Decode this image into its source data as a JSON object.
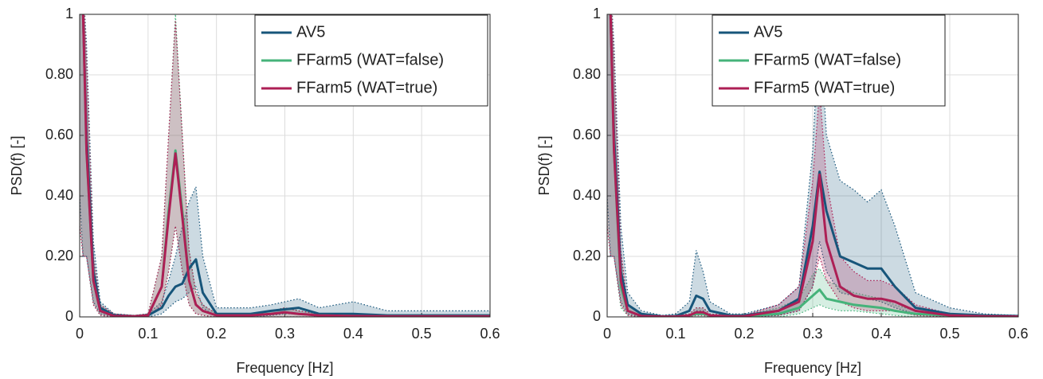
{
  "chart_data": [
    {
      "type": "line",
      "x_label": "Frequency [Hz]",
      "y_label": "PSD(f) [-]",
      "grid": true,
      "legend": "upper right",
      "xlim": [
        0,
        0.6
      ],
      "ylim": [
        0,
        1
      ],
      "xticks": [
        0,
        0.1,
        0.2,
        0.3,
        0.4,
        0.5,
        0.6
      ],
      "yticks": [
        0,
        {
          "value": 0.2,
          "label": "0.20"
        },
        {
          "value": 0.4,
          "label": "0.40"
        },
        {
          "value": 0.6,
          "label": "0.60"
        },
        {
          "value": 0.8,
          "label": "0.80"
        },
        1
      ],
      "x": [
        0,
        0.005,
        0.01,
        0.02,
        0.03,
        0.05,
        0.08,
        0.1,
        0.12,
        0.13,
        0.14,
        0.15,
        0.16,
        0.17,
        0.18,
        0.2,
        0.25,
        0.28,
        0.3,
        0.32,
        0.35,
        0.4,
        0.45,
        0.5,
        0.55,
        0.6
      ],
      "series": [
        {
          "name": "AV5",
          "color": "#17557a",
          "values": [
            1.1,
            1.0,
            0.6,
            0.15,
            0.03,
            0.005,
            0.002,
            0.005,
            0.03,
            0.07,
            0.1,
            0.11,
            0.16,
            0.19,
            0.08,
            0.01,
            0.01,
            0.02,
            0.025,
            0.03,
            0.01,
            0.01,
            0.005,
            0.005,
            0.005,
            0.005
          ],
          "lower": [
            0.4,
            0.2,
            0.2,
            0.05,
            0.01,
            0,
            0,
            0,
            0.01,
            0.03,
            0.05,
            0.06,
            0.08,
            0.1,
            0.03,
            0,
            0,
            0.005,
            0.01,
            0.01,
            0,
            0,
            0,
            0,
            0,
            0
          ],
          "upper": [
            1.1,
            1.1,
            0.9,
            0.25,
            0.05,
            0.01,
            0.005,
            0.01,
            0.05,
            0.12,
            0.2,
            0.3,
            0.38,
            0.43,
            0.2,
            0.03,
            0.03,
            0.04,
            0.05,
            0.06,
            0.03,
            0.05,
            0.02,
            0.02,
            0.02,
            0.02
          ]
        },
        {
          "name": "FFarm5 (WAT=false)",
          "color": "#45b37a",
          "values": [
            1.1,
            1.0,
            0.55,
            0.12,
            0.02,
            0.003,
            0.002,
            0.005,
            0.1,
            0.35,
            0.55,
            0.35,
            0.12,
            0.04,
            0.02,
            0.005,
            0.005,
            0.01,
            0.015,
            0.01,
            0.005,
            0.003,
            0.002,
            0.002,
            0.002,
            0.002
          ],
          "lower": [
            0.3,
            0.2,
            0.2,
            0.04,
            0.005,
            0,
            0,
            0,
            0.04,
            0.15,
            0.3,
            0.15,
            0.04,
            0.01,
            0.005,
            0,
            0,
            0,
            0,
            0,
            0,
            0,
            0,
            0,
            0,
            0
          ],
          "upper": [
            1.1,
            1.1,
            0.85,
            0.2,
            0.04,
            0.01,
            0.005,
            0.01,
            0.2,
            0.6,
            1.0,
            0.6,
            0.22,
            0.08,
            0.04,
            0.01,
            0.01,
            0.02,
            0.03,
            0.02,
            0.01,
            0.01,
            0.005,
            0.005,
            0.005,
            0.005
          ]
        },
        {
          "name": "FFarm5 (WAT=true)",
          "color": "#ad1f55",
          "values": [
            1.1,
            1.0,
            0.55,
            0.12,
            0.02,
            0.003,
            0.002,
            0.005,
            0.1,
            0.33,
            0.54,
            0.33,
            0.12,
            0.04,
            0.02,
            0.005,
            0.005,
            0.01,
            0.015,
            0.01,
            0.005,
            0.003,
            0.002,
            0.002,
            0.002,
            0.002
          ],
          "lower": [
            0.3,
            0.2,
            0.2,
            0.04,
            0.005,
            0,
            0,
            0,
            0.04,
            0.15,
            0.3,
            0.15,
            0.04,
            0.01,
            0.005,
            0,
            0,
            0,
            0,
            0,
            0,
            0,
            0,
            0,
            0,
            0
          ],
          "upper": [
            1.1,
            1.1,
            0.85,
            0.2,
            0.04,
            0.01,
            0.005,
            0.01,
            0.2,
            0.6,
            0.98,
            0.6,
            0.22,
            0.08,
            0.04,
            0.01,
            0.01,
            0.02,
            0.03,
            0.02,
            0.01,
            0.01,
            0.005,
            0.005,
            0.005,
            0.005
          ]
        }
      ]
    },
    {
      "type": "line",
      "x_label": "Frequency [Hz]",
      "y_label": "PSD(f) [-]",
      "grid": true,
      "legend": "upper center",
      "xlim": [
        0,
        0.6
      ],
      "ylim": [
        0,
        1
      ],
      "xticks": [
        0,
        0.1,
        0.2,
        0.3,
        0.4,
        0.5,
        0.6
      ],
      "yticks": [
        0,
        {
          "value": 0.2,
          "label": "0.20"
        },
        {
          "value": 0.4,
          "label": "0.40"
        },
        {
          "value": 0.6,
          "label": "0.60"
        },
        {
          "value": 0.8,
          "label": "0.80"
        },
        1
      ],
      "x": [
        0,
        0.005,
        0.01,
        0.02,
        0.03,
        0.05,
        0.08,
        0.1,
        0.12,
        0.13,
        0.14,
        0.15,
        0.18,
        0.2,
        0.25,
        0.28,
        0.3,
        0.31,
        0.32,
        0.34,
        0.36,
        0.38,
        0.4,
        0.42,
        0.45,
        0.5,
        0.55,
        0.6
      ],
      "series": [
        {
          "name": "AV5",
          "color": "#17557a",
          "values": [
            1.1,
            1.0,
            0.6,
            0.15,
            0.04,
            0.01,
            0.002,
            0.003,
            0.02,
            0.07,
            0.06,
            0.02,
            0.005,
            0.005,
            0.02,
            0.06,
            0.3,
            0.48,
            0.35,
            0.2,
            0.18,
            0.16,
            0.16,
            0.1,
            0.03,
            0.01,
            0.005,
            0.003
          ],
          "lower": [
            0.4,
            0.2,
            0.2,
            0.05,
            0.01,
            0,
            0,
            0,
            0.005,
            0.02,
            0.02,
            0.005,
            0,
            0,
            0.005,
            0.02,
            0.1,
            0.25,
            0.15,
            0.08,
            0.07,
            0.06,
            0.05,
            0.03,
            0.01,
            0,
            0,
            0
          ],
          "upper": [
            1.1,
            1.1,
            0.9,
            0.3,
            0.08,
            0.02,
            0.005,
            0.01,
            0.05,
            0.22,
            0.15,
            0.05,
            0.01,
            0.01,
            0.04,
            0.1,
            0.55,
            0.98,
            0.6,
            0.45,
            0.42,
            0.38,
            0.42,
            0.3,
            0.08,
            0.03,
            0.01,
            0.005
          ]
        },
        {
          "name": "FFarm5 (WAT=false)",
          "color": "#45b37a",
          "values": [
            1.1,
            1.0,
            0.55,
            0.1,
            0.02,
            0.003,
            0.001,
            0.001,
            0.005,
            0.01,
            0.01,
            0.005,
            0.002,
            0.002,
            0.01,
            0.03,
            0.07,
            0.09,
            0.06,
            0.05,
            0.04,
            0.035,
            0.03,
            0.02,
            0.01,
            0.005,
            0.002,
            0.001
          ],
          "lower": [
            0.3,
            0.2,
            0.2,
            0.03,
            0.005,
            0,
            0,
            0,
            0,
            0,
            0,
            0,
            0,
            0,
            0,
            0.01,
            0.03,
            0.04,
            0.03,
            0.02,
            0.02,
            0.015,
            0.01,
            0.005,
            0,
            0,
            0,
            0
          ],
          "upper": [
            1.1,
            1.1,
            0.85,
            0.2,
            0.04,
            0.01,
            0.003,
            0.003,
            0.01,
            0.03,
            0.03,
            0.01,
            0.005,
            0.005,
            0.03,
            0.06,
            0.14,
            0.16,
            0.12,
            0.1,
            0.08,
            0.07,
            0.06,
            0.04,
            0.02,
            0.01,
            0.005,
            0.003
          ]
        },
        {
          "name": "FFarm5 (WAT=true)",
          "color": "#ad1f55",
          "values": [
            1.1,
            1.0,
            0.55,
            0.12,
            0.02,
            0.003,
            0.001,
            0.001,
            0.005,
            0.015,
            0.015,
            0.005,
            0.002,
            0.002,
            0.02,
            0.05,
            0.25,
            0.47,
            0.25,
            0.1,
            0.07,
            0.06,
            0.06,
            0.05,
            0.02,
            0.005,
            0.002,
            0.001
          ],
          "lower": [
            0.3,
            0.2,
            0.2,
            0.04,
            0.005,
            0,
            0,
            0,
            0,
            0.005,
            0.005,
            0,
            0,
            0,
            0.005,
            0.02,
            0.1,
            0.2,
            0.12,
            0.05,
            0.03,
            0.02,
            0.02,
            0.02,
            0.005,
            0,
            0,
            0
          ],
          "upper": [
            1.1,
            1.1,
            0.85,
            0.22,
            0.04,
            0.01,
            0.003,
            0.003,
            0.01,
            0.03,
            0.03,
            0.01,
            0.005,
            0.005,
            0.04,
            0.1,
            0.45,
            0.75,
            0.45,
            0.2,
            0.15,
            0.12,
            0.12,
            0.1,
            0.04,
            0.01,
            0.005,
            0.003
          ]
        }
      ]
    }
  ]
}
